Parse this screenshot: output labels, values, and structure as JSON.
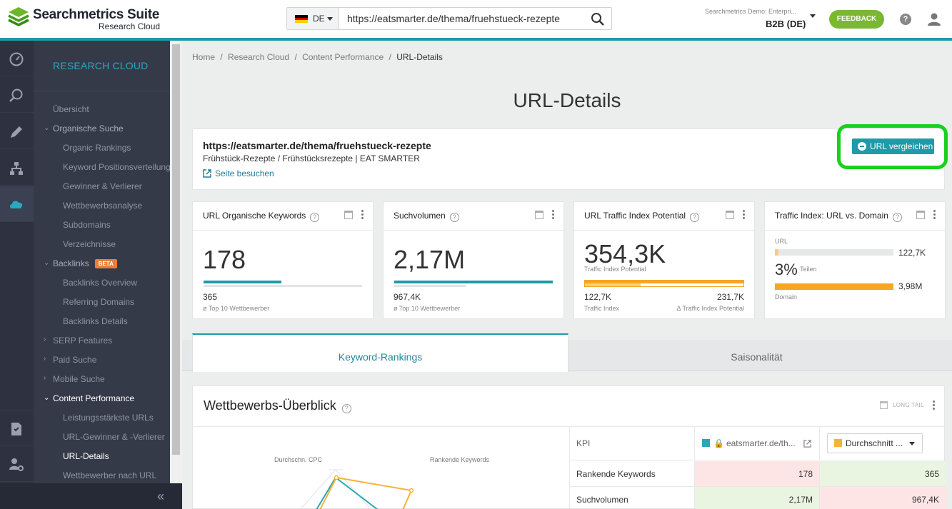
{
  "header": {
    "logo_title": "Searchmetrics Suite",
    "logo_subtitle": "Research Cloud",
    "country_code": "DE",
    "search_value": "https://eatsmarter.de/thema/fruehstueck-rezepte",
    "project_label": "Searchmetrics Demo: Enterpri...",
    "project_value": "B2B (DE)",
    "feedback_label": "FEEDBACK",
    "help_label": "?"
  },
  "colors": {
    "accent": "#1f9aa8",
    "orange": "#f5a623",
    "feedback_green": "#7ab733",
    "highlight_green": "#17d11d",
    "sidebar_bg": "#353a49"
  },
  "rail": {
    "icons": [
      "speedometer-icon",
      "search-analytics-icon",
      "pencil-icon",
      "sitemap-icon",
      "cloud-icon",
      "report-icon",
      "user-settings-icon"
    ]
  },
  "sidebar": {
    "title": "RESEARCH CLOUD",
    "items": [
      {
        "label": "Übersicht",
        "level": 1
      },
      {
        "label": "Organische Suche",
        "level": 1,
        "expandable": "open"
      },
      {
        "label": "Organic Rankings",
        "level": 2
      },
      {
        "label": "Keyword Positionsverteilung",
        "level": 2
      },
      {
        "label": "Gewinner & Verlierer",
        "level": 2
      },
      {
        "label": "Wettbewerbsanalyse",
        "level": 2
      },
      {
        "label": "Subdomains",
        "level": 2
      },
      {
        "label": "Verzeichnisse",
        "level": 2
      },
      {
        "label": "Backlinks",
        "level": 1,
        "expandable": "open",
        "badge": "BETA"
      },
      {
        "label": "Backlinks Overview",
        "level": 2
      },
      {
        "label": "Referring Domains",
        "level": 2
      },
      {
        "label": "Backlinks Details",
        "level": 2
      },
      {
        "label": "SERP Features",
        "level": 1,
        "expandable": "closed"
      },
      {
        "label": "Paid Suche",
        "level": 1,
        "expandable": "closed"
      },
      {
        "label": "Mobile Suche",
        "level": 1,
        "expandable": "closed"
      },
      {
        "label": "Content Performance",
        "level": 1,
        "expandable": "open",
        "active": true
      },
      {
        "label": "Leistungsstärkste URLs",
        "level": 2
      },
      {
        "label": "URL-Gewinner & -Verlierer",
        "level": 2
      },
      {
        "label": "URL-Details",
        "level": 2,
        "active": true
      },
      {
        "label": "Wettbewerber nach URL",
        "level": 2
      }
    ],
    "collapse_label": "«"
  },
  "breadcrumb": {
    "items": [
      "Home",
      "Research Cloud",
      "Content Performance",
      "URL-Details"
    ],
    "separator": "/"
  },
  "page_title": "URL-Details",
  "url_card": {
    "url": "https://eatsmarter.de/thema/fruehstueck-rezepte",
    "page_title": "Frühstück-Rezepte / Frühstücksrezepte | EAT SMARTER",
    "visit_label": "Seite besuchen",
    "compare_label": "URL vergleichen"
  },
  "kpis": {
    "keywords": {
      "title": "URL Organische Keywords",
      "value": "178",
      "value_fraction": 0.49,
      "benchmark_value": "365",
      "benchmark_label": "ø Top 10 Wettbewerber"
    },
    "volume": {
      "title": "Suchvolumen",
      "value": "2,17M",
      "value_fraction": 1.0,
      "benchmark_value": "967,4K",
      "benchmark_label": "ø Top 10 Wettbewerber",
      "benchmark_fraction": 0.45
    },
    "traffic_potential": {
      "title": "URL Traffic Index Potential",
      "value": "354,3K",
      "value_label": "Traffic Index Potential",
      "traffic_value": "122,7K",
      "traffic_label": "Traffic Index",
      "delta_value": "231,7K",
      "delta_label": "Δ Traffic Index Potential",
      "traffic_fraction": 0.35
    },
    "traffic_vs_domain": {
      "title": "Traffic Index: URL vs. Domain",
      "url_label": "URL",
      "url_value": "122,7K",
      "url_fraction": 0.03,
      "share_value": "3%",
      "share_label": "Teilen",
      "domain_label": "Domain",
      "domain_value": "3,98M",
      "domain_fraction": 1.0
    }
  },
  "tabs": {
    "active": "Keyword-Rankings",
    "inactive": "Saisonalität"
  },
  "overview": {
    "title": "Wettbewerbs-Überblick",
    "longtail_label": "LONG TAIL",
    "radar_labels": [
      "Durchschn. CPC",
      "Rankende Keywords"
    ],
    "table": {
      "kpi_header": "KPI",
      "col_url": "eatsmarter.de/th...",
      "col_avg": "Durchschnitt ...",
      "rows": [
        {
          "kpi": "Rankende Keywords",
          "url": "178",
          "avg": "365"
        },
        {
          "kpi": "Suchvolumen",
          "url": "2,17M",
          "avg": "967,4K"
        }
      ]
    }
  }
}
